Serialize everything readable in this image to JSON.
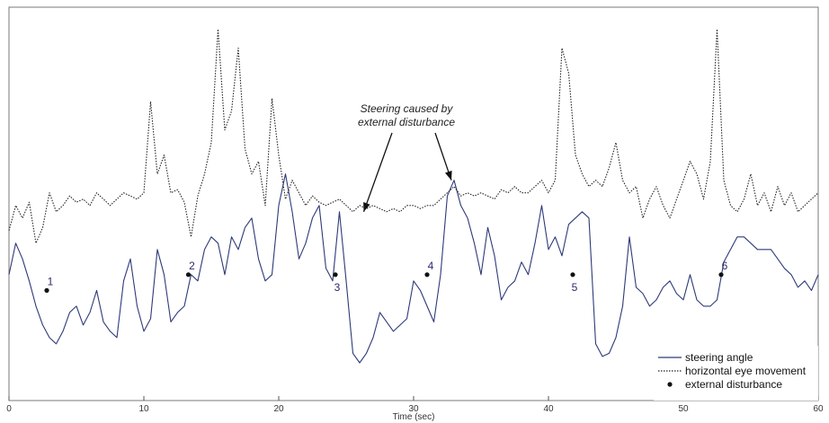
{
  "chart_data": {
    "type": "line",
    "title": "",
    "xlabel": "Time (sec)",
    "ylabel": "",
    "xlim": [
      0,
      60
    ],
    "xticks": [
      0,
      10,
      20,
      30,
      40,
      50,
      60
    ],
    "yticks_shown": false,
    "grid": false,
    "legend_position": "bottom-right",
    "annotation": {
      "text_lines": [
        "Steering caused by",
        "external disturbance"
      ],
      "arrow_targets": [
        {
          "x": 26.3,
          "y": 60
        },
        {
          "x": 32.8,
          "y": 70
        }
      ]
    },
    "series": [
      {
        "name": "steering angle",
        "style": "solid",
        "color": "#2e3a78",
        "x": [
          0,
          0.5,
          1.0,
          1.5,
          2.0,
          2.5,
          3.0,
          3.5,
          4.0,
          4.5,
          5.0,
          5.5,
          6.0,
          6.5,
          7.0,
          7.5,
          8.0,
          8.5,
          9.0,
          9.5,
          10.0,
          10.5,
          11.0,
          11.5,
          12.0,
          12.5,
          13.0,
          13.5,
          14.0,
          14.5,
          15.0,
          15.5,
          16.0,
          16.5,
          17.0,
          17.5,
          18.0,
          18.5,
          19.0,
          19.5,
          20.0,
          20.5,
          21.0,
          21.5,
          22.0,
          22.5,
          23.0,
          23.5,
          24.0,
          24.5,
          25.0,
          25.5,
          26.0,
          26.5,
          27.0,
          27.5,
          28.0,
          28.5,
          29.0,
          29.5,
          30.0,
          30.5,
          31.0,
          31.5,
          32.0,
          32.5,
          33.0,
          33.5,
          34.0,
          34.5,
          35.0,
          35.5,
          36.0,
          36.5,
          37.0,
          37.5,
          38.0,
          38.5,
          39.0,
          39.5,
          40.0,
          40.5,
          41.0,
          41.5,
          42.0,
          42.5,
          43.0,
          43.5,
          44.0,
          44.5,
          45.0,
          45.5,
          46.0,
          46.5,
          47.0,
          47.5,
          48.0,
          48.5,
          49.0,
          49.5,
          50.0,
          50.5,
          51.0,
          51.5,
          52.0,
          52.5,
          53.0,
          53.5,
          54.0,
          54.5,
          55.0,
          55.5,
          56.0,
          56.5,
          57.0,
          57.5,
          58.0,
          58.5,
          59.0,
          59.5,
          60.0
        ],
        "y": [
          40,
          50,
          45,
          38,
          30,
          24,
          20,
          18,
          22,
          28,
          30,
          24,
          28,
          35,
          25,
          22,
          20,
          38,
          45,
          30,
          22,
          26,
          48,
          40,
          25,
          28,
          30,
          40,
          38,
          48,
          52,
          50,
          40,
          52,
          48,
          55,
          58,
          45,
          38,
          40,
          62,
          72,
          60,
          45,
          50,
          58,
          62,
          42,
          38,
          60,
          38,
          15,
          12,
          15,
          20,
          28,
          25,
          22,
          24,
          26,
          38,
          35,
          30,
          25,
          40,
          65,
          70,
          62,
          58,
          50,
          40,
          55,
          46,
          32,
          36,
          38,
          44,
          40,
          50,
          62,
          48,
          52,
          46,
          56,
          58,
          60,
          58,
          18,
          14,
          15,
          20,
          30,
          52,
          36,
          34,
          30,
          32,
          36,
          38,
          34,
          32,
          40,
          32,
          30,
          30,
          32,
          44,
          48,
          52,
          52,
          50,
          48,
          48,
          48,
          45,
          42,
          40,
          36,
          38,
          35,
          40
        ]
      },
      {
        "name": "horizontal eye movement",
        "style": "dotted",
        "color": "#222222",
        "x": [
          0,
          0.5,
          1.0,
          1.5,
          2.0,
          2.5,
          3.0,
          3.5,
          4.0,
          4.5,
          5.0,
          5.5,
          6.0,
          6.5,
          7.0,
          7.5,
          8.0,
          8.5,
          9.0,
          9.5,
          10.0,
          10.5,
          11.0,
          11.5,
          12.0,
          12.5,
          13.0,
          13.5,
          14.0,
          14.5,
          15.0,
          15.5,
          16.0,
          16.5,
          17.0,
          17.5,
          18.0,
          18.5,
          19.0,
          19.5,
          20.0,
          20.5,
          21.0,
          21.5,
          22.0,
          22.5,
          23.0,
          23.5,
          24.0,
          24.5,
          25.0,
          25.5,
          26.0,
          26.5,
          27.0,
          27.5,
          28.0,
          28.5,
          29.0,
          29.5,
          30.0,
          30.5,
          31.0,
          31.5,
          32.0,
          32.5,
          33.0,
          33.5,
          34.0,
          34.5,
          35.0,
          35.5,
          36.0,
          36.5,
          37.0,
          37.5,
          38.0,
          38.5,
          39.0,
          39.5,
          40.0,
          40.5,
          41.0,
          41.5,
          42.0,
          42.5,
          43.0,
          43.5,
          44.0,
          44.5,
          45.0,
          45.5,
          46.0,
          46.5,
          47.0,
          47.5,
          48.0,
          48.5,
          49.0,
          49.5,
          50.0,
          50.5,
          51.0,
          51.5,
          52.0,
          52.5,
          53.0,
          53.5,
          54.0,
          54.5,
          55.0,
          55.5,
          56.0,
          56.5,
          57.0,
          57.5,
          58.0,
          58.5,
          59.0,
          59.5,
          60.0
        ],
        "y": [
          54,
          62,
          58,
          63,
          50,
          55,
          66,
          60,
          62,
          65,
          63,
          64,
          62,
          66,
          64,
          62,
          64,
          66,
          65,
          64,
          66,
          95,
          72,
          78,
          66,
          67,
          63,
          52,
          65,
          72,
          82,
          118,
          86,
          92,
          112,
          80,
          72,
          76,
          62,
          96,
          78,
          64,
          70,
          66,
          62,
          65,
          63,
          62,
          63,
          64,
          62,
          60,
          62,
          61,
          62,
          61,
          60,
          61,
          60,
          62,
          62,
          61,
          62,
          62,
          64,
          66,
          68,
          65,
          66,
          65,
          66,
          65,
          64,
          67,
          66,
          68,
          66,
          66,
          68,
          70,
          66,
          70,
          112,
          104,
          78,
          72,
          68,
          70,
          68,
          74,
          82,
          70,
          66,
          68,
          58,
          64,
          68,
          62,
          58,
          64,
          70,
          76,
          72,
          64,
          76,
          118,
          70,
          62,
          60,
          64,
          72,
          62,
          66,
          60,
          68,
          62,
          66,
          60,
          62,
          64,
          66
        ]
      }
    ],
    "disturbances": {
      "legend": "external disturbance",
      "points": [
        {
          "label": "1",
          "x": 2.8,
          "y": 35
        },
        {
          "label": "2",
          "x": 13.3,
          "y": 40
        },
        {
          "label": "3",
          "x": 24.2,
          "y": 40
        },
        {
          "label": "4",
          "x": 31.0,
          "y": 40
        },
        {
          "label": "5",
          "x": 41.8,
          "y": 40
        },
        {
          "label": "6",
          "x": 52.8,
          "y": 40
        }
      ]
    }
  }
}
